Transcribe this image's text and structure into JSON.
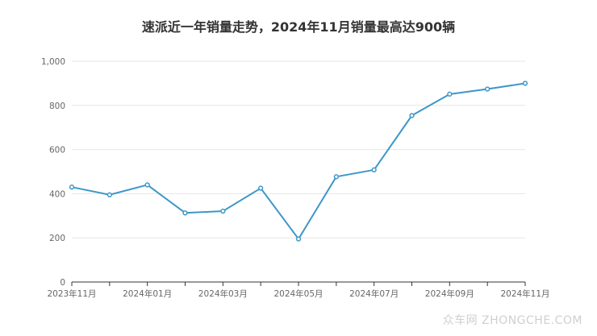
{
  "chart_data": {
    "type": "line",
    "title": "速派近一年销量走势，2024年11月销量最高达900辆",
    "xlabel": "",
    "ylabel": "",
    "ylim": [
      0,
      1000
    ],
    "yticks": [
      0,
      200,
      400,
      600,
      800,
      1000
    ],
    "ytick_labels": [
      "0",
      "200",
      "400",
      "600",
      "800",
      "1,000"
    ],
    "grid": true,
    "legend": "none",
    "x_tick_labels": [
      "2023年11月",
      "2024年01月",
      "2024年03月",
      "2024年05月",
      "2024年07月",
      "2024年09月",
      "2024年11月"
    ],
    "categories": [
      "2023-11",
      "2023-12",
      "2024-01",
      "2024-02",
      "2024-03",
      "2024-04",
      "2024-05",
      "2024-06",
      "2024-07",
      "2024-08",
      "2024-09",
      "2024-10",
      "2024-11"
    ],
    "series": [
      {
        "values": [
          430,
          395,
          440,
          313,
          321,
          425,
          195,
          477,
          508,
          754,
          851,
          874,
          900
        ],
        "color": "#3d97c8"
      }
    ]
  },
  "watermark": "众车网 ZHONGCHE.COM",
  "colors": {
    "line": "#3d97c8",
    "grid": "#e6e6e6",
    "axis": "#333333",
    "tick_text": "#666666",
    "title": "#333333"
  }
}
